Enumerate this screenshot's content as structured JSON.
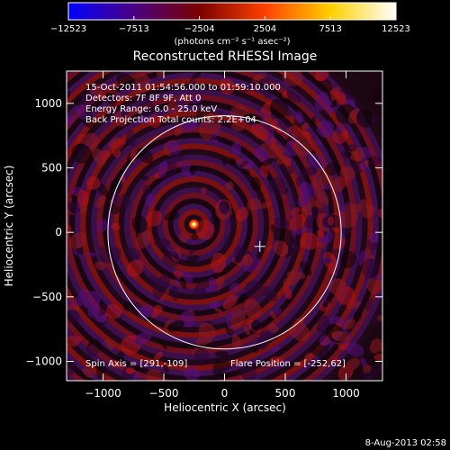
{
  "chart_data": {
    "type": "heatmap",
    "title": "Reconstructed RHESSI Image",
    "xlabel": "Heliocentric X (arcsec)",
    "ylabel": "Heliocentric Y (arcsec)",
    "xlim": [
      -1300,
      1300
    ],
    "ylim": [
      -1150,
      1250
    ],
    "x_ticks": [
      -1000,
      -500,
      0,
      500,
      1000
    ],
    "x_tick_labels": [
      "−1000",
      "−500",
      "0",
      "500",
      "1000"
    ],
    "y_ticks": [
      -1000,
      -500,
      0,
      500,
      1000
    ],
    "y_tick_labels": [
      "−1000",
      "−500",
      "0",
      "500",
      "1000"
    ],
    "colorbar": {
      "min": -12523,
      "max": 12523,
      "ticks": [
        -12523,
        -7513,
        -2504,
        2504,
        7513,
        12523
      ],
      "tick_labels": [
        "−12523",
        "−7513",
        "−2504",
        "2504",
        "7513",
        "12523"
      ],
      "unit_label": "(photons cm⁻² s⁻¹ asec⁻²)",
      "colors": [
        "#0000ff",
        "#4b0082",
        "#7a0000",
        "#ff4000",
        "#ffd000",
        "#ffffff"
      ]
    },
    "info_lines": [
      "15-Oct-2011 01:54:56.000 to 01:59:10.000",
      "Detectors: 7F 8F 9F, Att 0",
      "Energy Range: 6.0 - 25.0 keV",
      "Back Projection    Total counts: 2.2E+04"
    ],
    "spin_axis_label": "Spin Axis = [291,-109]",
    "flare_position_label": "Flare Position = [-252,62]",
    "spin_axis": [
      291,
      -109
    ],
    "flare_position": [
      -252,
      62
    ],
    "solar_limb_radius_arcsec": 960,
    "footer_date": "8-Aug-2013 02:58"
  }
}
